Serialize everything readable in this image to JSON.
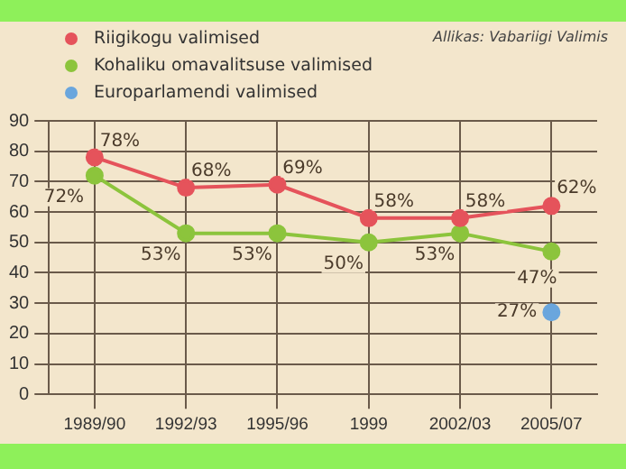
{
  "chart_data": {
    "type": "line",
    "annotations": [
      "Allikas: Vabariigi Valimis"
    ],
    "categories": [
      "1989/90",
      "1992/93",
      "1995/96",
      "1999",
      "2002/03",
      "2005/07"
    ],
    "series": [
      {
        "name": "Riigikogu valimised",
        "color": "#e5535b",
        "values": [
          78,
          68,
          69,
          58,
          58,
          62
        ],
        "value_labels": [
          "78%",
          "68%",
          "69%",
          "58%",
          "58%",
          "62%"
        ]
      },
      {
        "name": "Kohaliku omavalitsuse valimised",
        "color": "#8cc43c",
        "values": [
          72,
          53,
          53,
          50,
          53,
          47
        ],
        "value_labels": [
          "72%",
          "53%",
          "53%",
          "50%",
          "53%",
          "47%"
        ]
      },
      {
        "name": "Europarlamendi valimised",
        "color": "#6aa6dd",
        "values": [
          null,
          null,
          null,
          null,
          null,
          27
        ],
        "value_labels": [
          null,
          null,
          null,
          null,
          null,
          "27%"
        ]
      }
    ],
    "ylim": [
      0,
      90
    ],
    "yticks": [
      0,
      10,
      20,
      30,
      40,
      50,
      60,
      70,
      80,
      90
    ],
    "grid": true,
    "legend": "top left",
    "marker": "circle",
    "line_style": "solid"
  }
}
